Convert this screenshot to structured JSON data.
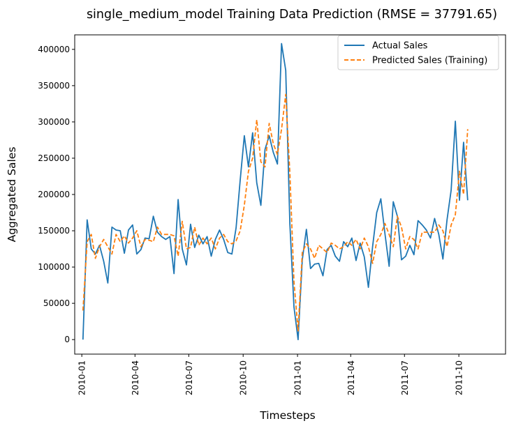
{
  "chart_data": {
    "type": "line",
    "title": "single_medium_model Training Data Prediction (RMSE = 37791.65)",
    "xlabel": "Timesteps",
    "ylabel": "Aggregated Sales",
    "x_ticks": [
      "2010-01",
      "2010-04",
      "2010-07",
      "2010-10",
      "2011-01",
      "2011-04",
      "2011-07",
      "2011-10"
    ],
    "y_ticks": [
      0,
      50000,
      100000,
      150000,
      200000,
      250000,
      300000,
      350000,
      400000
    ],
    "ylim": [
      -20000,
      420000
    ],
    "xlim": [
      "2009-12-20",
      "2011-12-19"
    ],
    "legend_position": "upper right",
    "series": [
      {
        "name": "Actual Sales",
        "color": "#1f77b4",
        "style": "solid",
        "points": [
          [
            "2010-01-03",
            0
          ],
          [
            "2010-01-10",
            165000
          ],
          [
            "2010-01-17",
            125000
          ],
          [
            "2010-01-24",
            118000
          ],
          [
            "2010-01-31",
            130000
          ],
          [
            "2010-02-07",
            108000
          ],
          [
            "2010-02-14",
            78000
          ],
          [
            "2010-02-21",
            155000
          ],
          [
            "2010-02-28",
            151000
          ],
          [
            "2010-03-07",
            150000
          ],
          [
            "2010-03-14",
            119000
          ],
          [
            "2010-03-21",
            151000
          ],
          [
            "2010-03-28",
            158000
          ],
          [
            "2010-04-04",
            118000
          ],
          [
            "2010-04-11",
            124000
          ],
          [
            "2010-04-18",
            140000
          ],
          [
            "2010-04-25",
            139000
          ],
          [
            "2010-05-02",
            170000
          ],
          [
            "2010-05-09",
            148000
          ],
          [
            "2010-05-16",
            142000
          ],
          [
            "2010-05-23",
            138000
          ],
          [
            "2010-05-30",
            142000
          ],
          [
            "2010-06-06",
            91000
          ],
          [
            "2010-06-13",
            193000
          ],
          [
            "2010-06-20",
            125000
          ],
          [
            "2010-06-27",
            103000
          ],
          [
            "2010-07-04",
            159000
          ],
          [
            "2010-07-11",
            127000
          ],
          [
            "2010-07-18",
            144000
          ],
          [
            "2010-07-25",
            132000
          ],
          [
            "2010-08-01",
            142000
          ],
          [
            "2010-08-08",
            115000
          ],
          [
            "2010-08-15",
            138000
          ],
          [
            "2010-08-22",
            151000
          ],
          [
            "2010-08-29",
            138000
          ],
          [
            "2010-09-05",
            120000
          ],
          [
            "2010-09-12",
            118000
          ],
          [
            "2010-09-19",
            154000
          ],
          [
            "2010-09-26",
            220000
          ],
          [
            "2010-10-03",
            281000
          ],
          [
            "2010-10-10",
            238000
          ],
          [
            "2010-10-17",
            285000
          ],
          [
            "2010-10-24",
            216000
          ],
          [
            "2010-10-31",
            185000
          ],
          [
            "2010-11-07",
            262000
          ],
          [
            "2010-11-14",
            281000
          ],
          [
            "2010-11-21",
            258000
          ],
          [
            "2010-11-28",
            242000
          ],
          [
            "2010-12-05",
            408000
          ],
          [
            "2010-12-12",
            371000
          ],
          [
            "2010-12-19",
            160000
          ],
          [
            "2010-12-26",
            45000
          ],
          [
            "2011-01-02",
            0
          ],
          [
            "2011-01-09",
            110000
          ],
          [
            "2011-01-16",
            152000
          ],
          [
            "2011-01-23",
            98000
          ],
          [
            "2011-01-30",
            104000
          ],
          [
            "2011-02-06",
            105000
          ],
          [
            "2011-02-13",
            88000
          ],
          [
            "2011-02-20",
            124000
          ],
          [
            "2011-02-27",
            130000
          ],
          [
            "2011-03-06",
            115000
          ],
          [
            "2011-03-13",
            108000
          ],
          [
            "2011-03-20",
            135000
          ],
          [
            "2011-03-27",
            128000
          ],
          [
            "2011-04-03",
            140000
          ],
          [
            "2011-04-10",
            109000
          ],
          [
            "2011-04-17",
            133000
          ],
          [
            "2011-04-24",
            114000
          ],
          [
            "2011-05-01",
            72000
          ],
          [
            "2011-05-08",
            128000
          ],
          [
            "2011-05-15",
            175000
          ],
          [
            "2011-05-22",
            194000
          ],
          [
            "2011-05-29",
            146000
          ],
          [
            "2011-06-05",
            101000
          ],
          [
            "2011-06-12",
            190000
          ],
          [
            "2011-06-19",
            170000
          ],
          [
            "2011-06-26",
            110000
          ],
          [
            "2011-07-03",
            115000
          ],
          [
            "2011-07-10",
            130000
          ],
          [
            "2011-07-17",
            117000
          ],
          [
            "2011-07-24",
            164000
          ],
          [
            "2011-07-31",
            158000
          ],
          [
            "2011-08-07",
            151000
          ],
          [
            "2011-08-14",
            140000
          ],
          [
            "2011-08-21",
            167000
          ],
          [
            "2011-08-28",
            145000
          ],
          [
            "2011-09-04",
            111000
          ],
          [
            "2011-09-11",
            165000
          ],
          [
            "2011-09-18",
            206000
          ],
          [
            "2011-09-25",
            301000
          ],
          [
            "2011-10-02",
            192000
          ],
          [
            "2011-10-09",
            272000
          ],
          [
            "2011-10-16",
            192000
          ]
        ]
      },
      {
        "name": "Predicted Sales (Training)",
        "color": "#ff7f0e",
        "style": "dashed",
        "points": [
          [
            "2010-01-03",
            40000
          ],
          [
            "2010-01-10",
            135000
          ],
          [
            "2010-01-17",
            145000
          ],
          [
            "2010-01-24",
            112000
          ],
          [
            "2010-01-31",
            128000
          ],
          [
            "2010-02-07",
            138000
          ],
          [
            "2010-02-14",
            128000
          ],
          [
            "2010-02-21",
            118000
          ],
          [
            "2010-02-28",
            145000
          ],
          [
            "2010-03-07",
            135000
          ],
          [
            "2010-03-14",
            143000
          ],
          [
            "2010-03-21",
            133000
          ],
          [
            "2010-03-28",
            140000
          ],
          [
            "2010-04-04",
            150000
          ],
          [
            "2010-04-11",
            128000
          ],
          [
            "2010-04-18",
            138000
          ],
          [
            "2010-04-25",
            137000
          ],
          [
            "2010-05-02",
            135000
          ],
          [
            "2010-05-09",
            155000
          ],
          [
            "2010-05-16",
            145000
          ],
          [
            "2010-05-23",
            145000
          ],
          [
            "2010-05-30",
            145000
          ],
          [
            "2010-06-06",
            143000
          ],
          [
            "2010-06-13",
            115000
          ],
          [
            "2010-06-20",
            163000
          ],
          [
            "2010-06-27",
            125000
          ],
          [
            "2010-07-04",
            127000
          ],
          [
            "2010-07-11",
            155000
          ],
          [
            "2010-07-18",
            130000
          ],
          [
            "2010-07-25",
            140000
          ],
          [
            "2010-08-01",
            132000
          ],
          [
            "2010-08-08",
            140000
          ],
          [
            "2010-08-15",
            125000
          ],
          [
            "2010-08-22",
            140000
          ],
          [
            "2010-08-29",
            145000
          ],
          [
            "2010-09-05",
            135000
          ],
          [
            "2010-09-12",
            132000
          ],
          [
            "2010-09-19",
            136000
          ],
          [
            "2010-09-26",
            150000
          ],
          [
            "2010-10-03",
            185000
          ],
          [
            "2010-10-10",
            232000
          ],
          [
            "2010-10-17",
            250000
          ],
          [
            "2010-10-24",
            303000
          ],
          [
            "2010-10-31",
            245000
          ],
          [
            "2010-11-07",
            238000
          ],
          [
            "2010-11-14",
            298000
          ],
          [
            "2010-11-21",
            270000
          ],
          [
            "2010-11-28",
            255000
          ],
          [
            "2010-12-05",
            290000
          ],
          [
            "2010-12-12",
            338000
          ],
          [
            "2010-12-19",
            230000
          ],
          [
            "2010-12-26",
            80000
          ],
          [
            "2011-01-02",
            12000
          ],
          [
            "2011-01-09",
            120000
          ],
          [
            "2011-01-16",
            132000
          ],
          [
            "2011-01-23",
            125000
          ],
          [
            "2011-01-30",
            112000
          ],
          [
            "2011-02-06",
            130000
          ],
          [
            "2011-02-13",
            125000
          ],
          [
            "2011-02-20",
            120000
          ],
          [
            "2011-02-27",
            133000
          ],
          [
            "2011-03-06",
            130000
          ],
          [
            "2011-03-13",
            125000
          ],
          [
            "2011-03-20",
            128000
          ],
          [
            "2011-03-27",
            135000
          ],
          [
            "2011-04-03",
            130000
          ],
          [
            "2011-04-10",
            138000
          ],
          [
            "2011-04-17",
            125000
          ],
          [
            "2011-04-24",
            140000
          ],
          [
            "2011-05-01",
            128000
          ],
          [
            "2011-05-08",
            105000
          ],
          [
            "2011-05-15",
            135000
          ],
          [
            "2011-05-22",
            145000
          ],
          [
            "2011-05-29",
            160000
          ],
          [
            "2011-06-05",
            145000
          ],
          [
            "2011-06-12",
            128000
          ],
          [
            "2011-06-19",
            170000
          ],
          [
            "2011-06-26",
            155000
          ],
          [
            "2011-07-03",
            125000
          ],
          [
            "2011-07-10",
            142000
          ],
          [
            "2011-07-17",
            138000
          ],
          [
            "2011-07-24",
            125000
          ],
          [
            "2011-07-31",
            148000
          ],
          [
            "2011-08-07",
            148000
          ],
          [
            "2011-08-14",
            148000
          ],
          [
            "2011-08-21",
            148000
          ],
          [
            "2011-08-28",
            158000
          ],
          [
            "2011-09-04",
            150000
          ],
          [
            "2011-09-11",
            128000
          ],
          [
            "2011-09-18",
            158000
          ],
          [
            "2011-09-25",
            172000
          ],
          [
            "2011-10-02",
            232000
          ],
          [
            "2011-10-09",
            200000
          ],
          [
            "2011-10-16",
            290000
          ]
        ]
      }
    ]
  }
}
